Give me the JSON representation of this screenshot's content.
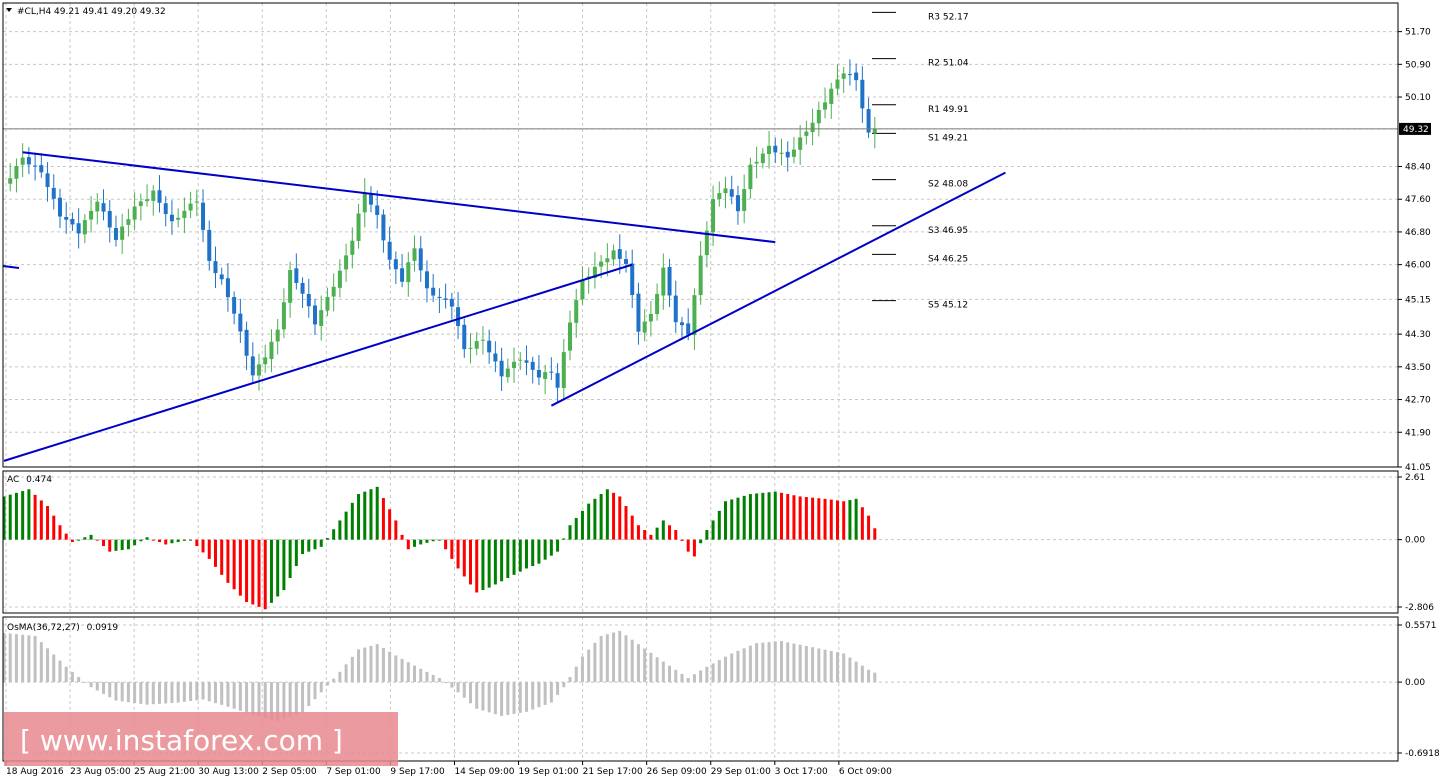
{
  "header": {
    "symbol_line": "#CL,H4  49.21 49.41 49.20 49.32"
  },
  "watermark": {
    "text": "[ www.instaforex.com ]",
    "color": "#e88a8f"
  },
  "colors": {
    "bull": "#4caf50",
    "bear": "#1e72c8",
    "trendline": "#0000c8",
    "ac_up": "#008000",
    "ac_down": "#ff0000",
    "osma": "#c0c0c0",
    "grid": "#c8c8c8",
    "axis": "#000000"
  },
  "chart_data": [
    {
      "type": "candlestick",
      "name": "price",
      "title": "#CL,H4",
      "ohlc_last": {
        "open": 49.21,
        "high": 49.41,
        "low": 49.2,
        "close": 49.32
      },
      "current_price_label": "49.32",
      "ylim": [
        41.05,
        52.4
      ],
      "y_ticks": [
        "51.70",
        "50.90",
        "50.10",
        "49.32",
        "48.40",
        "47.60",
        "46.80",
        "46.00",
        "45.15",
        "44.30",
        "43.50",
        "42.70",
        "41.90",
        "41.05"
      ],
      "x_tick_labels": [
        "18 Aug 2016",
        "23 Aug 05:00",
        "25 Aug 21:00",
        "30 Aug 13:00",
        "2 Sep 05:00",
        "7 Sep 01:00",
        "9 Sep 17:00",
        "14 Sep 09:00",
        "19 Sep 01:00",
        "21 Sep 17:00",
        "26 Sep 09:00",
        "29 Sep 01:00",
        "3 Oct 17:00",
        "6 Oct 09:00"
      ],
      "bars": 140,
      "path_points": [
        [
          0,
          47.9
        ],
        [
          3,
          48.6
        ],
        [
          6,
          48.3
        ],
        [
          9,
          47.2
        ],
        [
          12,
          46.8
        ],
        [
          15,
          47.6
        ],
        [
          18,
          46.6
        ],
        [
          21,
          47.4
        ],
        [
          24,
          47.8
        ],
        [
          27,
          47.0
        ],
        [
          31,
          47.6
        ],
        [
          33,
          46.1
        ],
        [
          35,
          45.6
        ],
        [
          37,
          44.8
        ],
        [
          40,
          43.3
        ],
        [
          42,
          43.8
        ],
        [
          44,
          44.4
        ],
        [
          46,
          45.8
        ],
        [
          48,
          45.3
        ],
        [
          50,
          44.6
        ],
        [
          54,
          45.8
        ],
        [
          56,
          46.6
        ],
        [
          58,
          47.8
        ],
        [
          60,
          47.2
        ],
        [
          62,
          46.1
        ],
        [
          64,
          45.6
        ],
        [
          66,
          46.4
        ],
        [
          68,
          45.4
        ],
        [
          72,
          45.0
        ],
        [
          74,
          43.9
        ],
        [
          77,
          44.2
        ],
        [
          80,
          43.3
        ],
        [
          83,
          43.7
        ],
        [
          86,
          43.3
        ],
        [
          88,
          43.4
        ],
        [
          89,
          43.0
        ],
        [
          91,
          44.6
        ],
        [
          93,
          45.6
        ],
        [
          96,
          46.1
        ],
        [
          98,
          46.3
        ],
        [
          100,
          46.0
        ],
        [
          102,
          44.4
        ],
        [
          104,
          44.8
        ],
        [
          106,
          45.9
        ],
        [
          108,
          44.6
        ],
        [
          110,
          44.3
        ],
        [
          112,
          46.2
        ],
        [
          114,
          47.6
        ],
        [
          116,
          47.9
        ],
        [
          118,
          47.3
        ],
        [
          120,
          48.4
        ],
        [
          123,
          48.9
        ],
        [
          126,
          48.6
        ],
        [
          130,
          49.5
        ],
        [
          133,
          50.3
        ],
        [
          135,
          50.7
        ],
        [
          137,
          50.5
        ],
        [
          139,
          49.2
        ],
        [
          140,
          49.32
        ]
      ],
      "pivot_levels": [
        {
          "label": "R3",
          "value": 52.17
        },
        {
          "label": "R2",
          "value": 51.04
        },
        {
          "label": "R1",
          "value": 49.91
        },
        {
          "label": "S1",
          "value": 49.21
        },
        {
          "label": "S2",
          "value": 48.08
        },
        {
          "label": "S3",
          "value": 46.95
        },
        {
          "label": "S4",
          "value": 46.25
        },
        {
          "label": "S5",
          "value": 45.12
        }
      ],
      "trendlines": [
        {
          "from": {
            "bar": 3,
            "price": 48.75
          },
          "to": {
            "bar": 124,
            "price": 46.55
          }
        },
        {
          "from": {
            "bar": 0,
            "price": 41.2
          },
          "to": {
            "bar": 101,
            "price": 46.0
          }
        },
        {
          "from": {
            "bar": 88,
            "price": 42.55
          },
          "to": {
            "bar": 161,
            "price": 48.25
          }
        }
      ]
    },
    {
      "type": "bar",
      "name": "AC",
      "title": "AC",
      "current_value_label": "0.474",
      "ylim": [
        -2.806,
        2.61
      ],
      "y_ticks": [
        "2.61",
        "0.00",
        "-2.806"
      ],
      "key_points": [
        [
          0,
          1.8
        ],
        [
          4,
          2.1
        ],
        [
          7,
          1.4
        ],
        [
          9,
          0.6
        ],
        [
          11,
          -0.1
        ],
        [
          14,
          0.2
        ],
        [
          17,
          -0.5
        ],
        [
          20,
          -0.4
        ],
        [
          23,
          0.1
        ],
        [
          26,
          -0.2
        ],
        [
          30,
          0.0
        ],
        [
          33,
          -0.8
        ],
        [
          36,
          -1.8
        ],
        [
          39,
          -2.6
        ],
        [
          42,
          -2.9
        ],
        [
          45,
          -2.1
        ],
        [
          48,
          -0.6
        ],
        [
          51,
          -0.3
        ],
        [
          54,
          0.8
        ],
        [
          57,
          1.9
        ],
        [
          60,
          2.2
        ],
        [
          63,
          0.8
        ],
        [
          65,
          -0.4
        ],
        [
          67,
          -0.2
        ],
        [
          70,
          0.0
        ],
        [
          73,
          -1.2
        ],
        [
          76,
          -2.2
        ],
        [
          78,
          -2.0
        ],
        [
          81,
          -1.6
        ],
        [
          84,
          -1.2
        ],
        [
          86,
          -1.0
        ],
        [
          89,
          -0.5
        ],
        [
          91,
          0.6
        ],
        [
          94,
          1.5
        ],
        [
          97,
          2.1
        ],
        [
          99,
          1.8
        ],
        [
          102,
          0.6
        ],
        [
          104,
          0.2
        ],
        [
          106,
          0.8
        ],
        [
          108,
          0.4
        ],
        [
          110,
          -0.5
        ],
        [
          111,
          -0.7
        ],
        [
          113,
          0.4
        ],
        [
          116,
          1.6
        ],
        [
          120,
          1.9
        ],
        [
          124,
          2.0
        ],
        [
          128,
          1.8
        ],
        [
          132,
          1.7
        ],
        [
          135,
          1.6
        ],
        [
          137,
          1.7
        ],
        [
          139,
          1.0
        ],
        [
          140,
          0.474
        ]
      ]
    },
    {
      "type": "bar",
      "name": "OsMA",
      "title": "OsMA(36,72,27)",
      "params": "(36,72,27)",
      "current_value_label": "0.0919",
      "ylim": [
        -0.6918,
        0.5571
      ],
      "y_ticks": [
        "0.5571",
        "0.00",
        "-0.6918"
      ],
      "key_points": [
        [
          0,
          0.48
        ],
        [
          5,
          0.45
        ],
        [
          10,
          0.15
        ],
        [
          14,
          -0.05
        ],
        [
          18,
          -0.18
        ],
        [
          23,
          -0.22
        ],
        [
          28,
          -0.2
        ],
        [
          32,
          -0.17
        ],
        [
          36,
          -0.24
        ],
        [
          40,
          -0.32
        ],
        [
          44,
          -0.38
        ],
        [
          48,
          -0.3
        ],
        [
          51,
          -0.1
        ],
        [
          54,
          0.1
        ],
        [
          57,
          0.32
        ],
        [
          60,
          0.37
        ],
        [
          63,
          0.26
        ],
        [
          66,
          0.16
        ],
        [
          70,
          0.04
        ],
        [
          73,
          -0.1
        ],
        [
          76,
          -0.26
        ],
        [
          80,
          -0.33
        ],
        [
          84,
          -0.29
        ],
        [
          88,
          -0.2
        ],
        [
          90,
          -0.05
        ],
        [
          93,
          0.25
        ],
        [
          96,
          0.45
        ],
        [
          99,
          0.5
        ],
        [
          102,
          0.37
        ],
        [
          106,
          0.2
        ],
        [
          110,
          0.04
        ],
        [
          113,
          0.15
        ],
        [
          117,
          0.28
        ],
        [
          121,
          0.38
        ],
        [
          125,
          0.4
        ],
        [
          130,
          0.34
        ],
        [
          135,
          0.28
        ],
        [
          139,
          0.12
        ],
        [
          140,
          0.0919
        ]
      ]
    }
  ]
}
